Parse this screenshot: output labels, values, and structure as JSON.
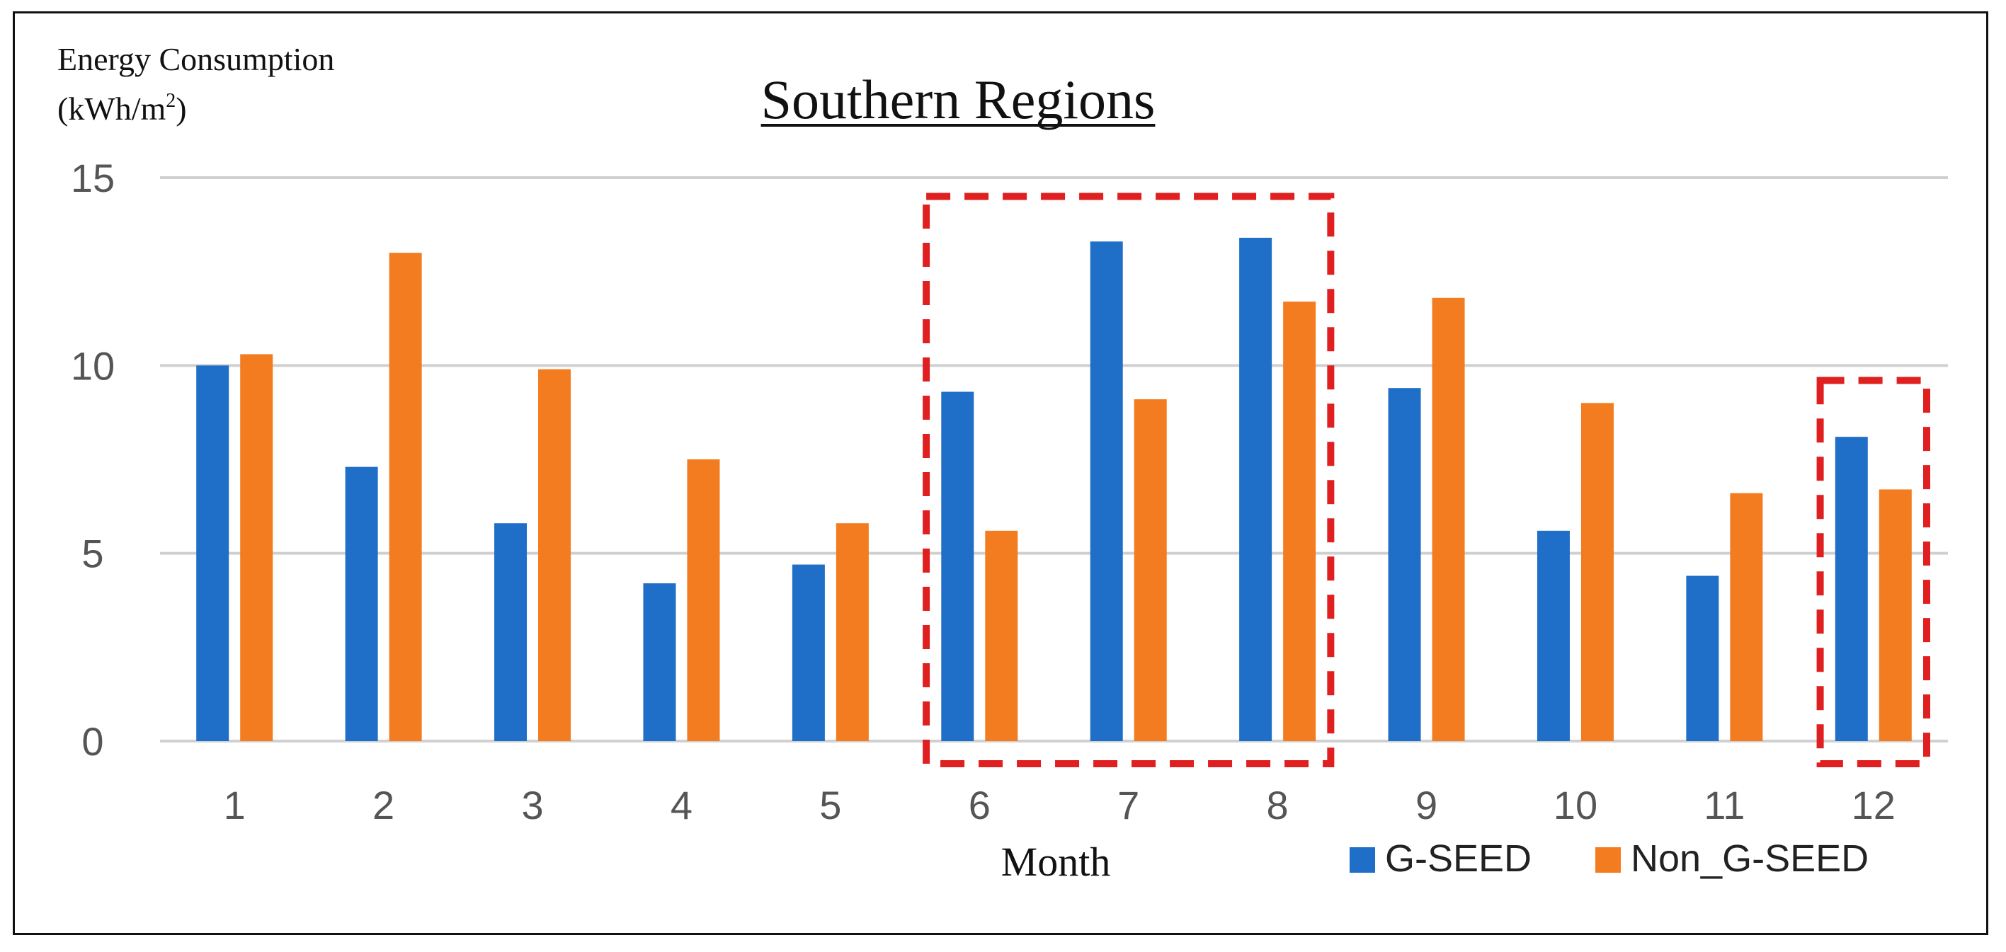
{
  "chart_data": {
    "type": "bar",
    "title": "Southern Regions",
    "ylabel_line1": "Energy Consumption",
    "ylabel_line2_base": "(kWh/m",
    "ylabel_line2_sup": "2",
    "ylabel_line2_end": ")",
    "xlabel": "Month",
    "ylim": [
      0,
      15
    ],
    "yticks": [
      0,
      5,
      10,
      15
    ],
    "categories": [
      "1",
      "2",
      "3",
      "4",
      "5",
      "6",
      "7",
      "8",
      "9",
      "10",
      "11",
      "12"
    ],
    "series": [
      {
        "name": "G-SEED",
        "color": "#1f6fc9",
        "values": [
          10.0,
          7.3,
          5.8,
          4.2,
          4.7,
          9.3,
          13.3,
          13.4,
          9.4,
          5.6,
          4.4,
          8.1
        ]
      },
      {
        "name": "Non_G-SEED",
        "color": "#f47c20",
        "values": [
          10.3,
          13.0,
          9.9,
          7.5,
          5.8,
          5.6,
          9.1,
          11.7,
          11.8,
          9.0,
          6.6,
          6.7
        ]
      }
    ],
    "grid": true,
    "gridColor": "#d0d0d0",
    "highlightColor": "#e02020",
    "highlights": [
      {
        "from": "6",
        "to": "8",
        "ymax": 14.5
      },
      {
        "from": "12",
        "to": "12",
        "ymax": 9.6
      }
    ],
    "legend_position": "bottom-right"
  }
}
